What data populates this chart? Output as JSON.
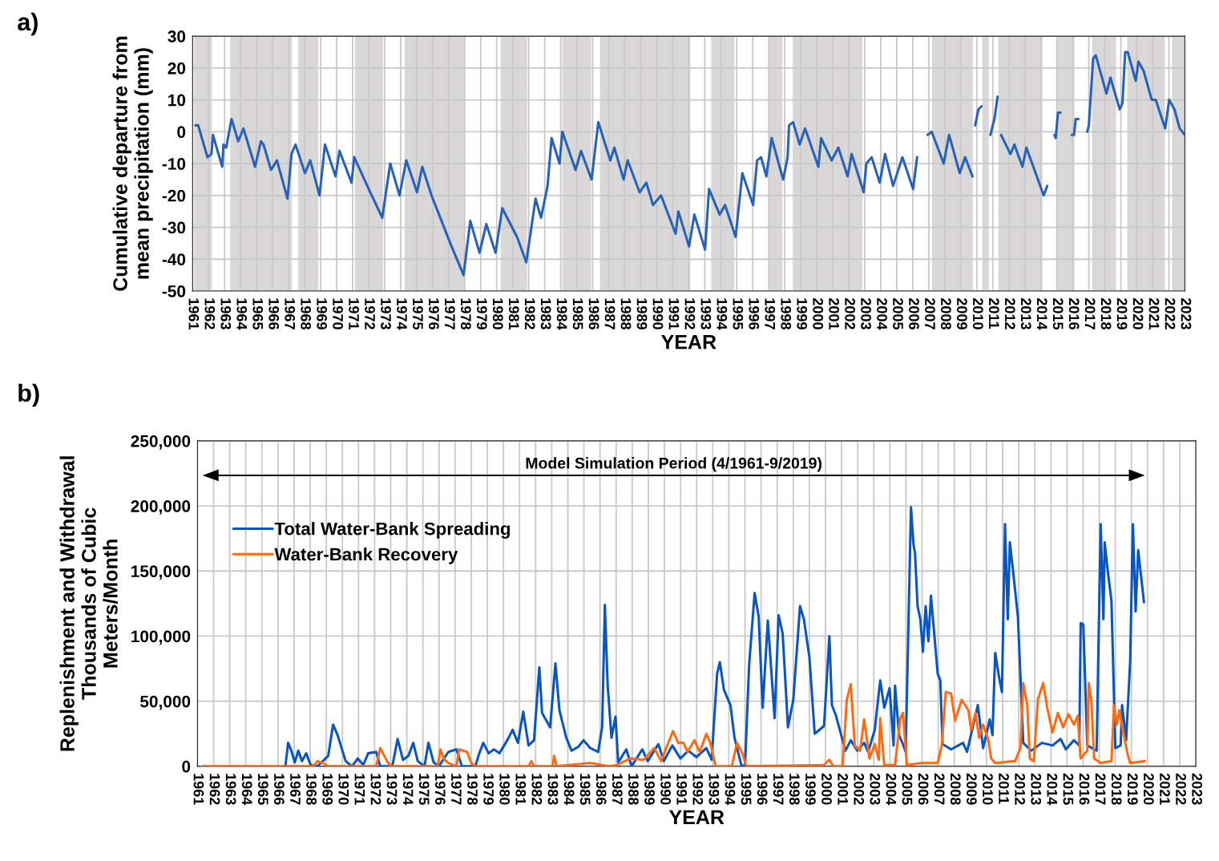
{
  "chart_data": [
    {
      "type": "line",
      "title": "a)",
      "xlabel": "YEAR",
      "ylabel": "Cumulative departure from\nmean precipitation (mm)",
      "xlim": [
        1961,
        2023
      ],
      "xticks": [
        1961,
        1962,
        1963,
        1964,
        1965,
        1966,
        1967,
        1968,
        1969,
        1970,
        1971,
        1972,
        1973,
        1974,
        1975,
        1976,
        1977,
        1978,
        1979,
        1980,
        1981,
        1982,
        1983,
        1984,
        1985,
        1986,
        1987,
        1988,
        1989,
        1990,
        1991,
        1992,
        1993,
        1994,
        1995,
        1996,
        1997,
        1998,
        1999,
        2000,
        2001,
        2002,
        2003,
        2004,
        2005,
        2006,
        2007,
        2008,
        2009,
        2010,
        2011,
        2012,
        2013,
        2014,
        2015,
        2016,
        2017,
        2018,
        2019,
        2020,
        2021,
        2022,
        2023
      ],
      "ylim": [
        -50,
        30
      ],
      "yticks": [
        -50,
        -40,
        -30,
        -20,
        -10,
        0,
        10,
        20,
        30
      ],
      "grid": true,
      "marker": "none",
      "line_style": "solid",
      "bands": [
        {
          "axis": "x",
          "from": 1961.1,
          "to": 1962.2,
          "color": "#d9d7d7"
        },
        {
          "axis": "x",
          "from": 1963.35,
          "to": 1967.2,
          "color": "#d9d7d7"
        },
        {
          "axis": "x",
          "from": 1967.6,
          "to": 1968.85,
          "color": "#d9d7d7"
        },
        {
          "axis": "x",
          "from": 1971.15,
          "to": 1972.9,
          "color": "#d9d7d7"
        },
        {
          "axis": "x",
          "from": 1974.25,
          "to": 1978.0,
          "color": "#d9d7d7"
        },
        {
          "axis": "x",
          "from": 1980.25,
          "to": 1981.9,
          "color": "#d9d7d7"
        },
        {
          "axis": "x",
          "from": 1984.1,
          "to": 1985.9,
          "color": "#d9d7d7"
        },
        {
          "axis": "x",
          "from": 1986.45,
          "to": 1992.1,
          "color": "#d9d7d7"
        },
        {
          "axis": "x",
          "from": 1993.4,
          "to": 1994.85,
          "color": "#d9d7d7"
        },
        {
          "axis": "x",
          "from": 1997.0,
          "to": 1997.85,
          "color": "#d9d7d7"
        },
        {
          "axis": "x",
          "from": 1998.5,
          "to": 2002.85,
          "color": "#d9d7d7"
        },
        {
          "axis": "x",
          "from": 2007.2,
          "to": 2009.75,
          "color": "#d9d7d7"
        },
        {
          "axis": "x",
          "from": 2010.35,
          "to": 2010.75,
          "color": "#d9d7d7"
        },
        {
          "axis": "x",
          "from": 2011.35,
          "to": 2014.1,
          "color": "#d9d7d7"
        },
        {
          "axis": "x",
          "from": 2015.0,
          "to": 2016.1,
          "color": "#d9d7d7"
        },
        {
          "axis": "x",
          "from": 2017.2,
          "to": 2018.7,
          "color": "#d9d7d7"
        },
        {
          "axis": "x",
          "from": 2019.4,
          "to": 2021.75,
          "color": "#d9d7d7"
        },
        {
          "axis": "x",
          "from": 2022.2,
          "to": 2022.95,
          "color": "#d9d7d7"
        }
      ],
      "series": [
        {
          "color": "#2762b8",
          "x": [
            1961.18,
            1961.35,
            1961.93,
            1962.18,
            1962.27,
            1962.85,
            1962.93,
            1963.1,
            1963.43,
            1963.85,
            1964.18,
            1964.9,
            1965.27,
            1965.43,
            1965.9,
            1966.27,
            1966.93,
            1967.18,
            1967.43,
            1968.02,
            1968.35,
            1968.93,
            1969.27,
            1969.93,
            1970.18,
            1970.93,
            1971.1,
            1972.1,
            1972.85,
            1973.35,
            1973.93,
            1974.35,
            1975.02,
            1975.35,
            1975.93,
            1977.1,
            1977.93,
            1978.35,
            1978.93,
            1979.35,
            1979.93,
            1980.35,
            1981.27,
            1981.85,
            1982.43,
            1982.77,
            1983.18,
            1983.43,
            1983.93,
            1984.1,
            1984.93,
            1985.27,
            1985.93,
            1986.35,
            1987.1,
            1987.35,
            1987.93,
            1988.18,
            1988.93,
            1989.35,
            1989.77,
            1990.27,
            1991.18,
            1991.35,
            1992.02,
            1992.35,
            1993.02,
            1993.27,
            1993.93,
            1994.27,
            1994.93,
            1995.35,
            1996.02,
            1996.27,
            1996.52,
            1996.85,
            1997.18,
            1997.9,
            1998.18,
            1998.27,
            1998.52,
            1998.93,
            1999.27,
            2000.1,
            2000.27,
            2000.93,
            2001.35,
            2001.93,
            2002.18,
            2002.93,
            2003.1,
            2003.43,
            2003.93,
            2004.27,
            2004.77,
            2005.35,
            2006.02,
            2006.27,
            2006.6,
            2006.93,
            2007.18,
            2007.93,
            2008.27,
            2008.93,
            2009.27,
            2009.73,
            2009.82,
            2009.9,
            2010.1,
            2010.3,
            2010.6,
            2010.85,
            2011.1,
            2011.3,
            2011.4,
            2011.52,
            2012.1,
            2012.35,
            2012.85,
            2013.1,
            2014.18,
            2014.4,
            2014.6,
            2014.85,
            2014.93,
            2015.07,
            2015.23,
            2015.6,
            2015.93,
            2016.07,
            2016.18,
            2016.35,
            2016.6,
            2016.9,
            2017.0,
            2017.27,
            2017.43,
            2018.1,
            2018.35,
            2018.93,
            2019.1,
            2019.27,
            2019.43,
            2019.93,
            2020.1,
            2020.43,
            2020.93,
            2021.18,
            2021.77,
            2022.02,
            2022.35,
            2022.68,
            2023.0
          ],
          "values": [
            2,
            2,
            -8,
            -7,
            -1,
            -11,
            -4,
            -5,
            4,
            -3,
            1,
            -11,
            -3,
            -4,
            -12,
            -9,
            -21,
            -7,
            -4,
            -13,
            -9,
            -20,
            -4,
            -14,
            -6,
            -16,
            -8,
            -19,
            -27,
            -10,
            -20,
            -9,
            -19,
            -11,
            -20,
            -35,
            -45,
            -28,
            -38,
            -29,
            -38,
            -24,
            -33,
            -41,
            -21,
            -27,
            -17,
            -2,
            -10,
            0,
            -12,
            -6,
            -15,
            3,
            -9,
            -5,
            -15,
            -9,
            -19,
            -16,
            -23,
            -20,
            -32,
            -25,
            -36,
            -26,
            -37,
            -18,
            -26,
            -23,
            -33,
            -13,
            -23,
            -9,
            -8,
            -14,
            -2,
            -15,
            -8,
            2,
            3,
            -4,
            1,
            -11,
            -2,
            -9,
            -5,
            -14,
            -7,
            -19,
            -10,
            -8,
            -16,
            -7,
            -17,
            -8,
            -18,
            -8,
            null,
            -1,
            0,
            -10,
            -1,
            -13,
            -8,
            -14,
            null,
            2,
            7,
            8,
            null,
            -1,
            4,
            11,
            null,
            -1,
            -7,
            -4,
            -11,
            -5,
            -20,
            -17,
            null,
            -1,
            -2,
            6,
            6,
            null,
            -1,
            -1,
            4,
            4,
            null,
            0,
            2,
            23,
            24,
            12,
            17,
            7,
            9,
            25,
            25,
            16,
            22,
            19,
            10,
            10,
            1,
            10,
            7,
            1,
            -1
          ]
        }
      ]
    },
    {
      "type": "line",
      "title": "b)",
      "xlabel": "YEAR",
      "ylabel": "Replenishment and Withdrawal\nThousands of Cubic\nMeters/Month",
      "xlim": [
        1961,
        2023
      ],
      "xticks": [
        1961,
        1962,
        1963,
        1964,
        1965,
        1966,
        1967,
        1968,
        1969,
        1970,
        1971,
        1972,
        1973,
        1974,
        1975,
        1976,
        1977,
        1978,
        1979,
        1980,
        1981,
        1982,
        1983,
        1984,
        1985,
        1986,
        1987,
        1988,
        1989,
        1990,
        1991,
        1992,
        1993,
        1994,
        1995,
        1996,
        1997,
        1998,
        1999,
        2000,
        2001,
        2002,
        2003,
        2004,
        2005,
        2006,
        2007,
        2008,
        2009,
        2010,
        2011,
        2012,
        2013,
        2014,
        2015,
        2016,
        2017,
        2018,
        2019,
        2020,
        2021,
        2022,
        2023
      ],
      "ylim": [
        0,
        250000
      ],
      "yticks": [
        0,
        {
          "value": 50000,
          "label": "50,000"
        },
        {
          "value": 100000,
          "label": "100,000"
        },
        {
          "value": 150000,
          "label": "150,000"
        },
        {
          "value": 200000,
          "label": "200,000"
        },
        {
          "value": 250000,
          "label": "250,000"
        }
      ],
      "grid": true,
      "legend": "top left",
      "marker": "none",
      "line_style": "solid",
      "annotations": [
        "Model Simulation Period (4/1961-9/2019)"
      ],
      "series": [
        {
          "name": "Total Water-Bank Spreading",
          "color": "#0a55c0",
          "x": [
            1966.46,
            1966.63,
            1966.83,
            1967.04,
            1967.26,
            1967.49,
            1967.75,
            1968.03,
            1968.45,
            1969.12,
            1969.42,
            1969.7,
            1970.2,
            1970.6,
            1970.95,
            1971.3,
            1971.6,
            1972.1,
            1972.35,
            1973.1,
            1973.43,
            1973.76,
            1974.1,
            1974.4,
            1974.68,
            1975.1,
            1975.34,
            1975.67,
            1976.0,
            1976.25,
            1976.58,
            1977.08,
            1977.42,
            1978.25,
            1978.5,
            1978.75,
            1979.08,
            1979.41,
            1979.75,
            1980.24,
            1980.57,
            1980.9,
            1981.23,
            1981.56,
            1981.9,
            1982.23,
            1982.4,
            1982.9,
            1983.23,
            1983.48,
            1983.9,
            1984.23,
            1984.65,
            1984.98,
            1985.4,
            1985.88,
            1986.13,
            1986.3,
            1986.47,
            1986.71,
            1986.96,
            1987.13,
            1987.63,
            1987.96,
            1988.62,
            1988.96,
            1989.62,
            1989.96,
            1990.49,
            1990.99,
            1991.49,
            1991.99,
            1992.6,
            1992.93,
            1993.27,
            1993.44,
            1993.69,
            1994.1,
            1994.35,
            1994.77,
            1995.0,
            1995.26,
            1995.6,
            1995.85,
            1996.1,
            1996.42,
            1996.84,
            1997.09,
            1997.34,
            1997.67,
            1998.0,
            1998.42,
            1998.66,
            1999.0,
            1999.33,
            1999.91,
            2000.24,
            2000.4,
            2000.65,
            2001.24,
            2001.57,
            2001.98,
            2002.4,
            2002.65,
            2003.06,
            2003.4,
            2003.65,
            2003.98,
            2004.23,
            2004.32,
            2004.57,
            2004.81,
            2004.98,
            2005.31,
            2005.47,
            2005.56,
            2005.72,
            2005.89,
            2006.05,
            2006.22,
            2006.39,
            2006.55,
            2006.97,
            2007.13,
            2007.27,
            2007.8,
            2008.54,
            2008.79,
            2009.46,
            2009.79,
            2010.2,
            2010.37,
            2010.54,
            2010.8,
            2010.96,
            2011.15,
            2011.32,
            2011.45,
            2011.65,
            2011.95,
            2012.28,
            2012.78,
            2013.44,
            2014.1,
            2014.6,
            2014.93,
            2015.43,
            2015.76,
            2015.85,
            2016.01,
            2016.26,
            2016.84,
            2016.93,
            2017.09,
            2017.26,
            2017.34,
            2017.51,
            2017.76,
            2018.0,
            2018.33,
            2018.42,
            2018.67,
            2018.92,
            2019.09,
            2019.26,
            2019.42,
            2019.59,
            2019.78
          ],
          "values": [
            0,
            18000,
            12000,
            3000,
            12000,
            4000,
            10000,
            1000,
            0,
            8000,
            32000,
            24000,
            4000,
            0,
            6000,
            1000,
            10000,
            11000,
            0,
            0,
            21000,
            5000,
            8000,
            18000,
            4000,
            0,
            18000,
            3000,
            0,
            5000,
            11000,
            13000,
            0,
            0,
            10000,
            18000,
            10000,
            13000,
            10000,
            20000,
            28000,
            18000,
            42000,
            16000,
            20000,
            76000,
            41000,
            30000,
            79000,
            43000,
            22000,
            12000,
            15000,
            20000,
            14000,
            11000,
            30000,
            124000,
            63000,
            22000,
            38000,
            3000,
            13000,
            0,
            13000,
            4000,
            17000,
            4000,
            16000,
            6000,
            12000,
            7000,
            14000,
            5000,
            71000,
            80000,
            59000,
            47000,
            22000,
            1000,
            0,
            78000,
            133000,
            115000,
            45000,
            112000,
            37000,
            116000,
            102000,
            30000,
            51000,
            123000,
            113000,
            84000,
            25000,
            31000,
            100000,
            47000,
            39000,
            12000,
            20000,
            12000,
            18000,
            11000,
            28000,
            66000,
            45000,
            60000,
            16000,
            62000,
            24000,
            17000,
            11000,
            199000,
            170000,
            164000,
            123000,
            113000,
            88000,
            123000,
            96000,
            131000,
            71000,
            66000,
            17000,
            13000,
            18000,
            11000,
            47000,
            14000,
            36000,
            24000,
            87000,
            67000,
            57000,
            186000,
            113000,
            172000,
            150000,
            115000,
            18000,
            12000,
            18000,
            16000,
            21000,
            13000,
            20000,
            16000,
            110000,
            109000,
            16000,
            12000,
            76000,
            186000,
            113000,
            172000,
            152000,
            127000,
            14000,
            16000,
            47000,
            20000,
            80000,
            186000,
            119000,
            166000,
            147000,
            126000
          ]
        },
        {
          "name": "Water-Bank Recovery",
          "color": "#ff6a12",
          "x": [
            1961.31,
            1968.2,
            1968.45,
            1968.78,
            1969.12,
            1972.1,
            1972.35,
            1972.77,
            1973.0,
            1975.92,
            1976.09,
            1976.34,
            1976.59,
            1977.08,
            1977.25,
            1977.75,
            1978.0,
            1978.25,
            1981.56,
            1981.73,
            1981.9,
            1983.06,
            1983.15,
            1983.31,
            1984.06,
            1985.4,
            1986.55,
            1987.05,
            1987.88,
            1988.71,
            1989.37,
            1989.79,
            1990.53,
            1990.86,
            1991.19,
            1991.44,
            1991.86,
            1992.19,
            1992.6,
            1992.85,
            1993.18,
            1994.18,
            1994.51,
            1994.84,
            1995.09,
            1999.9,
            2000.24,
            2000.49,
            2001.07,
            2001.32,
            2001.57,
            2001.82,
            2002.15,
            2002.4,
            2002.73,
            2003.06,
            2003.31,
            2003.4,
            2003.65,
            2004.32,
            2004.65,
            2004.81,
            2005.06,
            2005.97,
            2006.97,
            2007.22,
            2007.47,
            2007.8,
            2008.05,
            2008.46,
            2008.88,
            2009.04,
            2009.32,
            2009.54,
            2009.79,
            2010.12,
            2010.29,
            2010.54,
            2011.78,
            2012.11,
            2012.28,
            2012.53,
            2012.69,
            2012.94,
            2013.19,
            2013.52,
            2013.77,
            2014.1,
            2014.43,
            2014.76,
            2015.09,
            2015.43,
            2015.67,
            2015.84,
            2016.26,
            2016.35,
            2016.51,
            2016.68,
            2017.09,
            2017.76,
            2017.92,
            2018.09,
            2018.25,
            2018.5,
            2018.75,
            2018.92,
            2019.84
          ],
          "values": [
            0,
            0,
            4000,
            2500,
            0,
            0,
            14000,
            4000,
            0,
            0,
            13000,
            5000,
            2500,
            0,
            13000,
            11000,
            2500,
            0,
            0,
            4000,
            0,
            0,
            8000,
            0,
            1000,
            2500,
            0,
            1000,
            6000,
            5000,
            14000,
            4000,
            27000,
            18000,
            18000,
            11000,
            20000,
            11000,
            25000,
            18000,
            0,
            0,
            18000,
            10000,
            0,
            1000,
            5000,
            0,
            0,
            51000,
            63000,
            16000,
            12000,
            36000,
            6000,
            17000,
            5000,
            37000,
            1000,
            1000,
            37000,
            41000,
            1000,
            2500,
            2500,
            16000,
            57000,
            56000,
            35000,
            51000,
            43000,
            28000,
            41000,
            22000,
            32000,
            20000,
            6000,
            2500,
            4000,
            14000,
            64000,
            47000,
            6000,
            4000,
            51000,
            64000,
            45000,
            26000,
            41000,
            30000,
            40000,
            32000,
            39000,
            6000,
            12000,
            64000,
            51000,
            6000,
            2500,
            4000,
            47000,
            32000,
            43000,
            26000,
            10000,
            2500,
            4000
          ]
        }
      ]
    }
  ]
}
